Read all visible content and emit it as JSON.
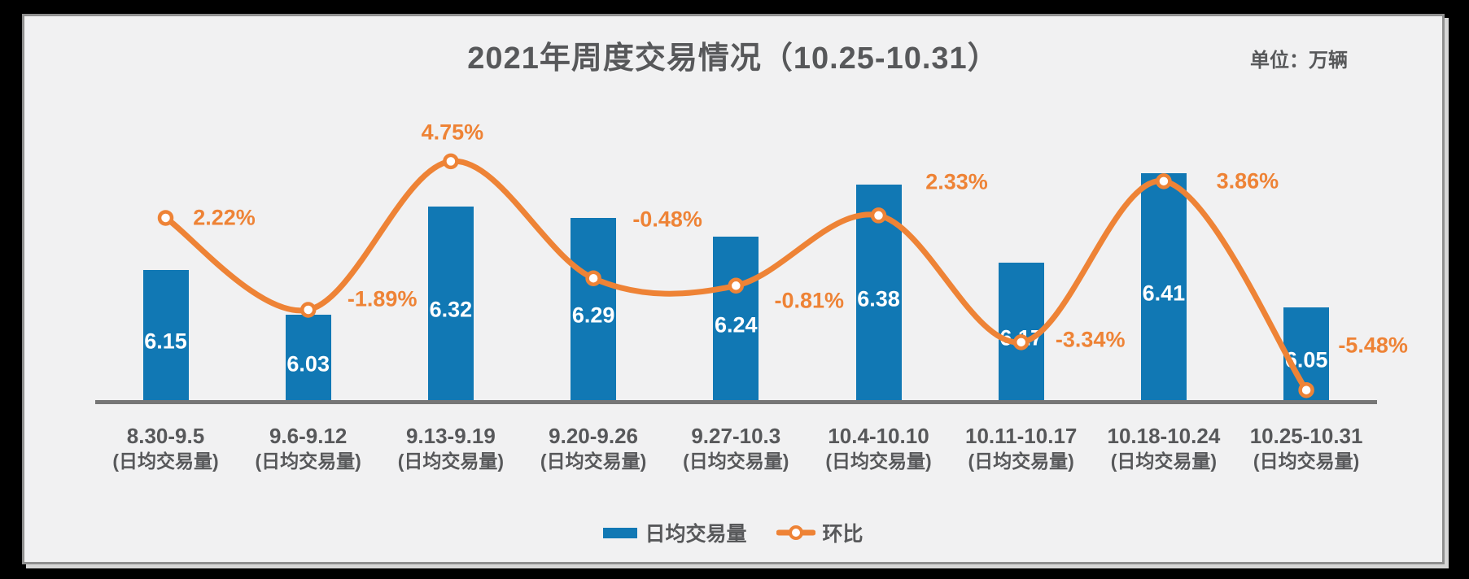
{
  "header": {
    "unit_label": "单位：万辆"
  },
  "chart_data": {
    "type": "bar+line-combo",
    "title": "2021年周度交易情况（10.25-10.31）",
    "unit": "万辆",
    "categories": [
      "8.30-9.5",
      "9.6-9.12",
      "9.13-9.19",
      "9.20-9.26",
      "9.27-10.3",
      "10.4-10.10",
      "10.11-10.17",
      "10.18-10.24",
      "10.25-10.31"
    ],
    "category_sublabel": "(日均交易量)",
    "series": [
      {
        "name": "日均交易量",
        "type": "bar",
        "values": [
          6.15,
          6.03,
          6.32,
          6.29,
          6.24,
          6.38,
          6.17,
          6.41,
          6.05
        ],
        "value_label_format": "0.00",
        "color": "#1178b4",
        "value_label_color": "#ffffff"
      },
      {
        "name": "环比",
        "type": "line",
        "values": [
          2.22,
          -1.89,
          4.75,
          -0.48,
          -0.81,
          2.33,
          -3.34,
          3.86,
          -5.48
        ],
        "value_label_format": "0.00%",
        "color": "#ee8336",
        "marker": "open-circle",
        "smooth": true
      }
    ],
    "legend": {
      "position": "bottom",
      "items": [
        "日均交易量",
        "环比"
      ]
    },
    "axes": {
      "x_axis_line_visible": true,
      "y_axis_visible": false,
      "gridlines": false,
      "bar_axis_min_estimate": 5.8
    }
  },
  "colors": {
    "bar": "#1178b4",
    "line": "#ee8336",
    "pct_label": "#ee8336",
    "bar_value_label": "#ffffff",
    "text_gray": "#57585a",
    "axis_line": "#767676",
    "panel_background": "#f1f1f2",
    "frame_background": "#000000"
  }
}
